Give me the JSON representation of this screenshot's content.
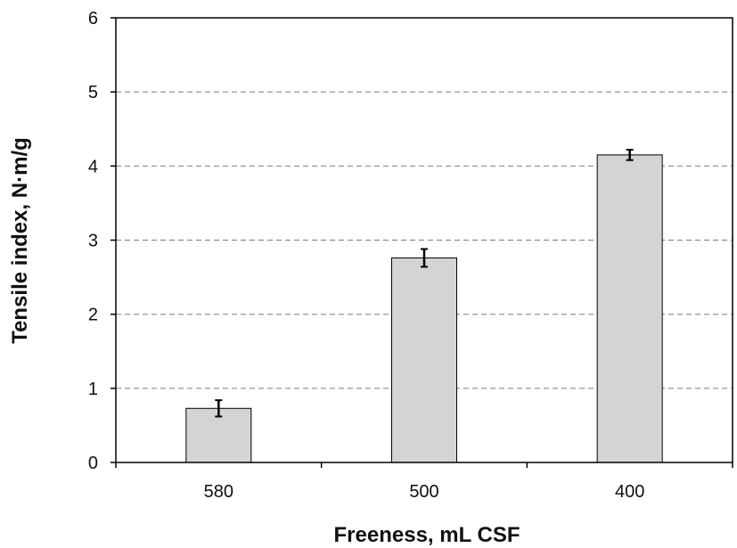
{
  "chart_data": {
    "type": "bar",
    "title": "",
    "xlabel": "Freeness, mL CSF",
    "ylabel": "Tensile index, N·m/g",
    "categories": [
      "580",
      "500",
      "400"
    ],
    "values": [
      0.73,
      2.76,
      4.15
    ],
    "errors": [
      0.11,
      0.12,
      0.07
    ],
    "ylim": [
      0,
      6
    ],
    "yticks": [
      "0",
      "1",
      "2",
      "3",
      "4",
      "5",
      "6"
    ],
    "grid": "horizontal-dashed",
    "bar_color": "#d4d4d4",
    "bar_edge_color": "#000000",
    "grid_color": "#8c8c8c"
  }
}
